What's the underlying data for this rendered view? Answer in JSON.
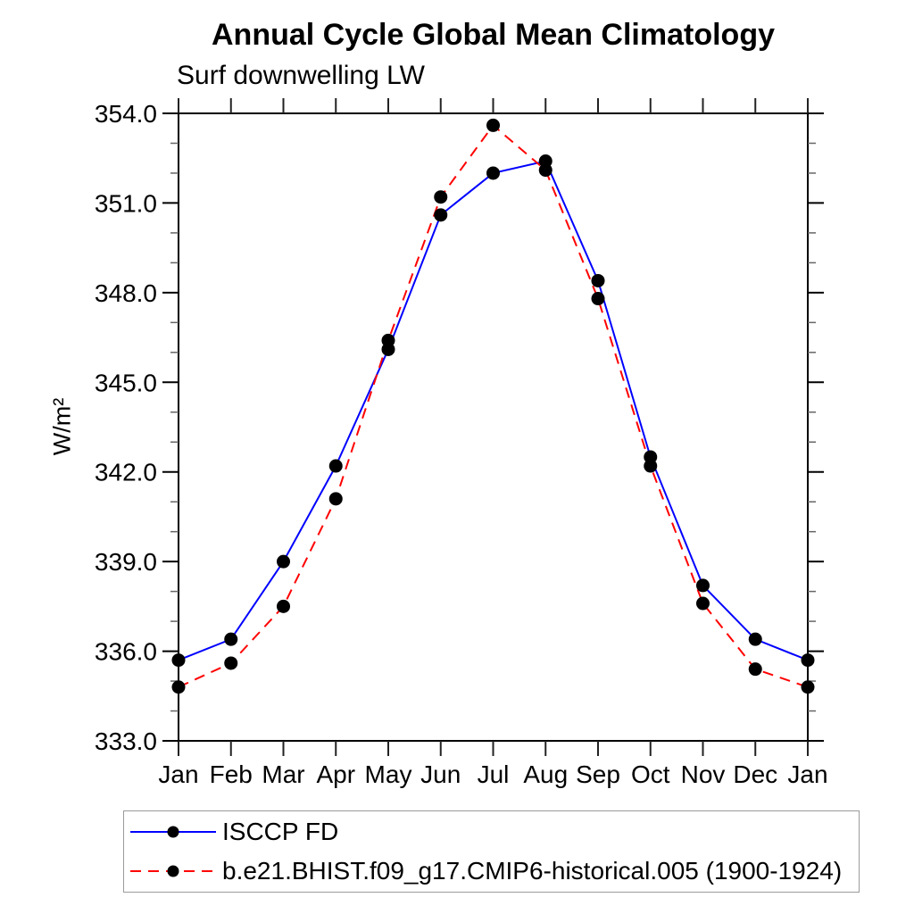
{
  "chart_data": {
    "type": "line",
    "title": "Annual Cycle Global Mean Climatology",
    "subtitle": "Surf downwelling LW",
    "ylabel": "W/m²",
    "xlabel": "",
    "categories": [
      "Jan",
      "Feb",
      "Mar",
      "Apr",
      "May",
      "Jun",
      "Jul",
      "Aug",
      "Sep",
      "Oct",
      "Nov",
      "Dec",
      "Jan"
    ],
    "ylim": [
      333.0,
      354.0
    ],
    "ytick_major_step": 3.0,
    "ytick_minor_step": 1.0,
    "ytick_labels": [
      "333.0",
      "336.0",
      "339.0",
      "342.0",
      "345.0",
      "348.0",
      "351.0",
      "354.0"
    ],
    "grid": false,
    "legend_position": "bottom-left-outside",
    "marker": {
      "shape": "filled-circle",
      "color": "#000000"
    },
    "series": [
      {
        "name": "ISCCP FD",
        "color": "#0000ff",
        "line_style": "solid",
        "values": [
          335.7,
          336.4,
          339.0,
          342.2,
          346.1,
          350.6,
          352.0,
          352.4,
          348.4,
          342.5,
          338.2,
          336.4,
          335.7
        ]
      },
      {
        "name": "b.e21.BHIST.f09_g17.CMIP6-historical.005 (1900-1924)",
        "color": "#ff0000",
        "line_style": "dashed",
        "values": [
          334.8,
          335.6,
          337.5,
          341.1,
          346.4,
          351.2,
          353.6,
          352.1,
          347.8,
          342.2,
          337.6,
          335.4,
          334.8
        ]
      }
    ]
  }
}
